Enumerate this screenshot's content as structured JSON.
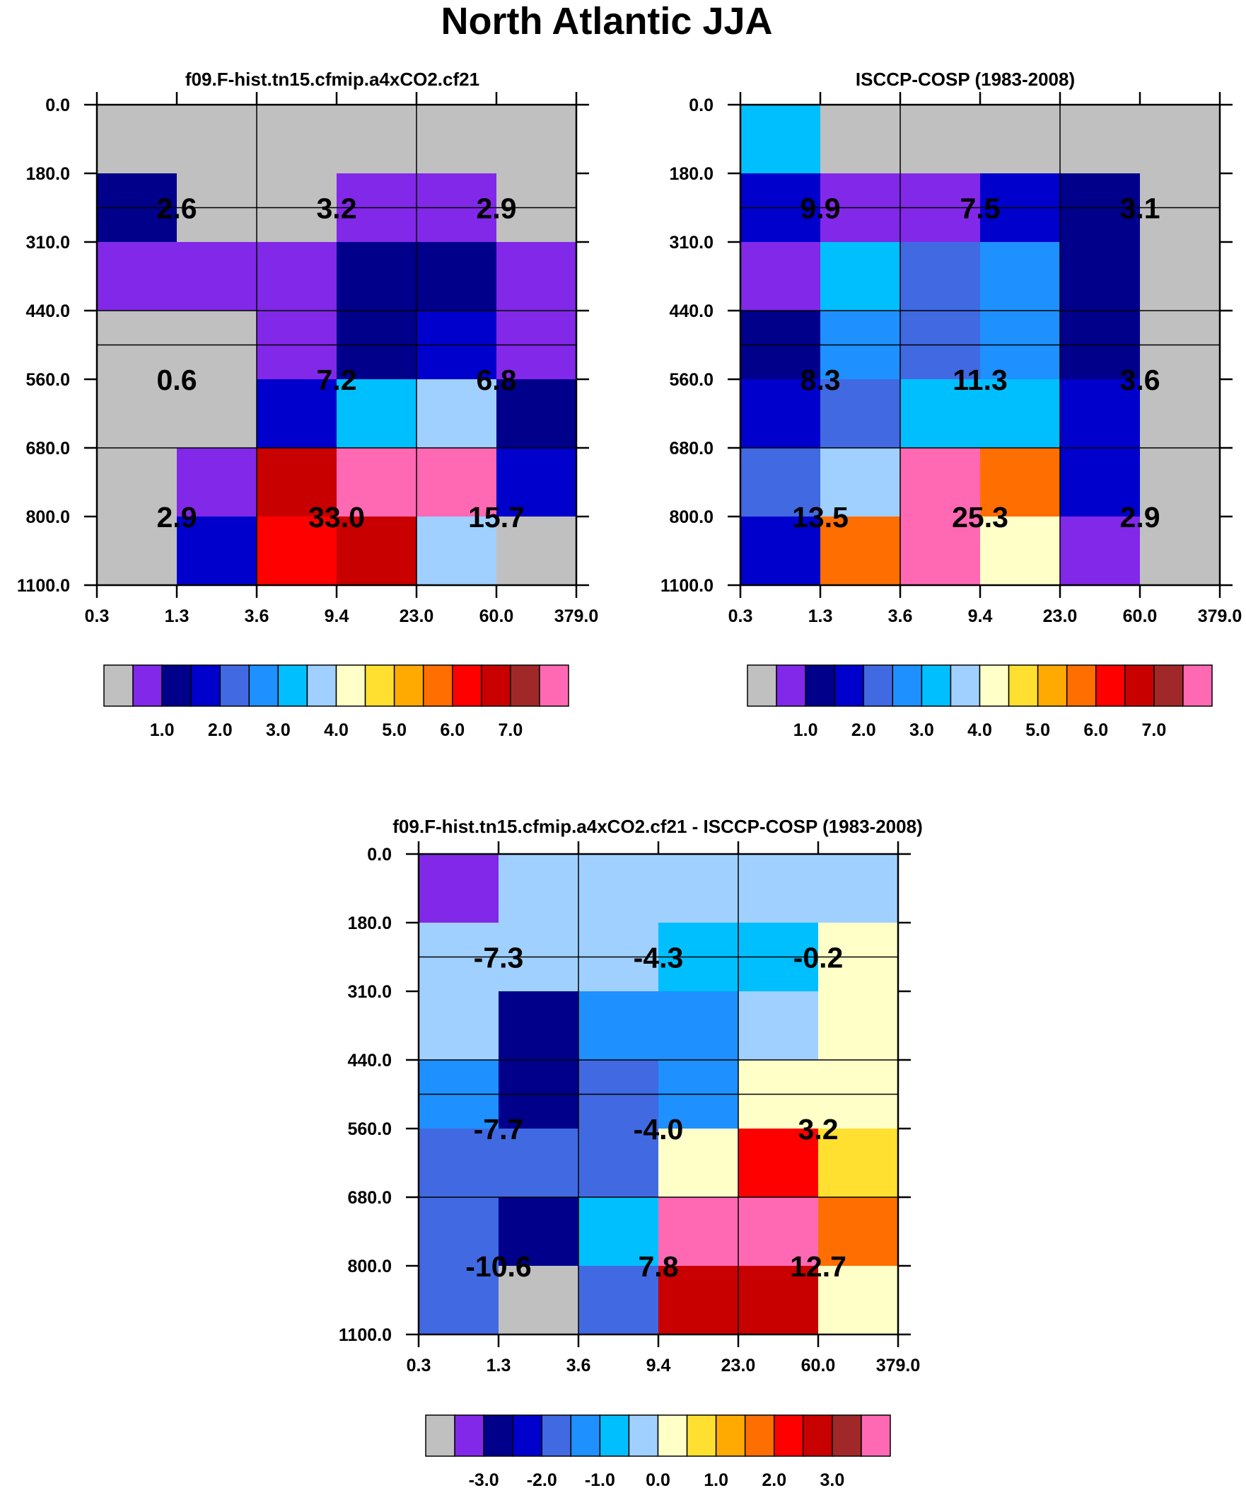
{
  "title": "North Atlantic JJA",
  "colorbar_colors": [
    "#c0c0c0",
    "#8228e8",
    "#00008b",
    "#0000cd",
    "#4169e1",
    "#1e90ff",
    "#00bfff",
    "#a0d0ff",
    "#ffffc8",
    "#ffe030",
    "#ffaa00",
    "#ff6e00",
    "#ff0000",
    "#c80000",
    "#a02828",
    "#ff69b4"
  ],
  "chart_data": [
    {
      "type": "heatmap",
      "title": "f09.F-hist.tn15.cfmip.a4xCO2.cf21",
      "x_tick_labels": [
        "0.3",
        "1.3",
        "3.6",
        "9.4",
        "23.0",
        "60.0",
        "379.0"
      ],
      "y_tick_labels": [
        "0.0",
        "180.0",
        "310.0",
        "440.0",
        "560.0",
        "680.0",
        "800.0",
        "1100.0"
      ],
      "cell_color_index": [
        [
          0,
          0,
          0,
          0,
          0,
          0
        ],
        [
          2,
          0,
          0,
          1,
          1,
          0
        ],
        [
          1,
          1,
          1,
          2,
          2,
          1
        ],
        [
          0,
          0,
          1,
          2,
          3,
          1
        ],
        [
          0,
          0,
          3,
          6,
          7,
          2
        ],
        [
          0,
          1,
          13,
          15,
          15,
          3
        ],
        [
          0,
          3,
          12,
          13,
          7,
          0
        ]
      ],
      "aggregated_values": [
        [
          "2.6",
          "3.2",
          "2.9"
        ],
        [
          "0.6",
          "7.2",
          "6.8"
        ],
        [
          "2.9",
          "33.0",
          "15.7"
        ]
      ],
      "colorbar_labels": [
        "1.0",
        "2.0",
        "3.0",
        "4.0",
        "5.0",
        "6.0",
        "7.0"
      ]
    },
    {
      "type": "heatmap",
      "title": "ISCCP-COSP (1983-2008)",
      "x_tick_labels": [
        "0.3",
        "1.3",
        "3.6",
        "9.4",
        "23.0",
        "60.0",
        "379.0"
      ],
      "y_tick_labels": [
        "0.0",
        "180.0",
        "310.0",
        "440.0",
        "560.0",
        "680.0",
        "800.0",
        "1100.0"
      ],
      "cell_color_index": [
        [
          6,
          0,
          0,
          0,
          0,
          0
        ],
        [
          3,
          1,
          1,
          3,
          2,
          0
        ],
        [
          1,
          6,
          4,
          5,
          2,
          0
        ],
        [
          2,
          5,
          4,
          5,
          2,
          0
        ],
        [
          3,
          4,
          6,
          6,
          3,
          0
        ],
        [
          4,
          7,
          15,
          11,
          3,
          0
        ],
        [
          3,
          11,
          15,
          8,
          1,
          0
        ]
      ],
      "aggregated_values": [
        [
          "9.9",
          "7.5",
          "3.1"
        ],
        [
          "8.3",
          "11.3",
          "3.6"
        ],
        [
          "13.5",
          "25.3",
          "2.9"
        ]
      ],
      "colorbar_labels": [
        "1.0",
        "2.0",
        "3.0",
        "4.0",
        "5.0",
        "6.0",
        "7.0"
      ]
    },
    {
      "type": "heatmap",
      "title": "f09.F-hist.tn15.cfmip.a4xCO2.cf21 - ISCCP-COSP (1983-2008)",
      "x_tick_labels": [
        "0.3",
        "1.3",
        "3.6",
        "9.4",
        "23.0",
        "60.0",
        "379.0"
      ],
      "y_tick_labels": [
        "0.0",
        "180.0",
        "310.0",
        "440.0",
        "560.0",
        "680.0",
        "800.0",
        "1100.0"
      ],
      "cell_color_index": [
        [
          1,
          7,
          7,
          7,
          7,
          7
        ],
        [
          7,
          7,
          7,
          6,
          6,
          8
        ],
        [
          7,
          2,
          5,
          5,
          7,
          8
        ],
        [
          5,
          2,
          4,
          5,
          8,
          8
        ],
        [
          4,
          4,
          4,
          8,
          12,
          9
        ],
        [
          4,
          2,
          6,
          15,
          15,
          11
        ],
        [
          4,
          0,
          4,
          13,
          13,
          8
        ]
      ],
      "aggregated_values": [
        [
          "-7.3",
          "-4.3",
          "-0.2"
        ],
        [
          "-7.7",
          "-4.0",
          "3.2"
        ],
        [
          "-10.6",
          "7.8",
          "12.7"
        ]
      ],
      "colorbar_labels": [
        "-3.0",
        "-2.0",
        "-1.0",
        "0.0",
        "1.0",
        "2.0",
        "3.0"
      ]
    }
  ]
}
